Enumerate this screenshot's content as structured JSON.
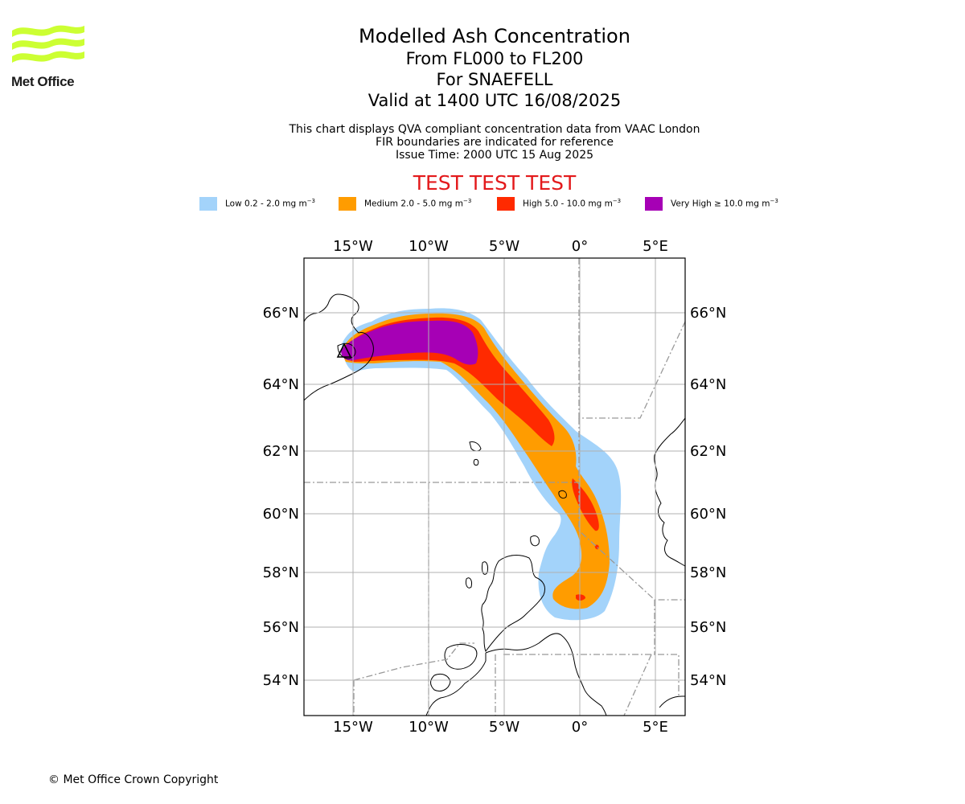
{
  "branding": {
    "logo_text": "Met Office",
    "logo_icon": "met-office-wave-logo",
    "logo_color": "#ccff33"
  },
  "header": {
    "title": "Modelled Ash Concentration",
    "flight_levels": "From FL000 to FL200",
    "volcano": "For SNAEFELL",
    "valid_time": "Valid at 1400 UTC 16/08/2025",
    "info_line1": "This chart displays QVA compliant concentration data from VAAC London",
    "info_line2": "FIR boundaries are indicated for reference",
    "issue_time": "Issue Time: 2000 UTC 15 Aug 2025",
    "test_banner": "TEST TEST TEST"
  },
  "legend": [
    {
      "label": "Low 0.2 - 2.0 mg m",
      "unit_exp": "−3",
      "color": "#a3d3fa"
    },
    {
      "label": "Medium 2.0 - 5.0 mg m",
      "unit_exp": "−3",
      "color": "#ff9c00"
    },
    {
      "label": "High 5.0 - 10.0 mg m",
      "unit_exp": "−3",
      "color": "#ff2a00"
    },
    {
      "label": "Very High ≥ 10.0 mg m",
      "unit_exp": "−3",
      "color": "#a600b5"
    }
  ],
  "map": {
    "lon_ticks": [
      "15°W",
      "10°W",
      "5°W",
      "0°",
      "5°E"
    ],
    "lat_ticks": [
      "66°N",
      "64°N",
      "62°N",
      "60°N",
      "58°N",
      "56°N",
      "54°N"
    ],
    "volcano_marker_icon": "volcano-triangle-icon",
    "grid": true
  },
  "footer": {
    "copyright": "© Met Office Crown Copyright"
  }
}
